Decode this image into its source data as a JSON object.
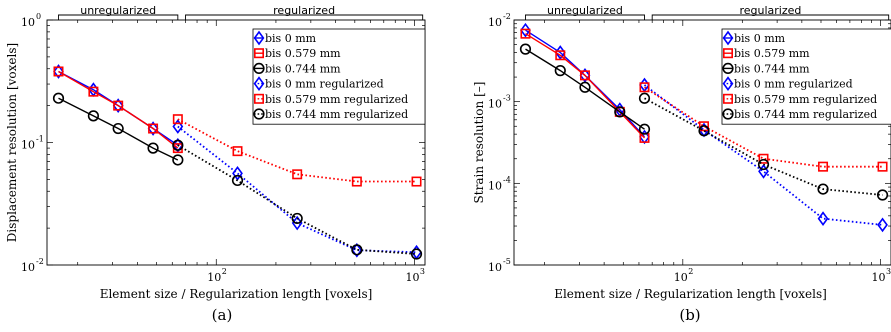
{
  "chart_data": [
    {
      "type": "line",
      "panel_label": "(a)",
      "xlabel": "Element size / Regularization length [voxels]",
      "ylabel": "Displacement resolution [voxels]",
      "xscale": "log",
      "yscale": "log",
      "xlim": [
        14,
        1130
      ],
      "ylim": [
        0.01,
        1
      ],
      "xticks": [
        {
          "v": 100,
          "base": "10",
          "exp": "2"
        },
        {
          "v": 1000,
          "base": "10",
          "exp": "3"
        }
      ],
      "yticks": [
        {
          "v": 0.01,
          "base": "10",
          "exp": "-2"
        },
        {
          "v": 0.1,
          "base": "10",
          "exp": "-1"
        },
        {
          "v": 1,
          "base": "10",
          "exp": "0"
        }
      ],
      "brackets": [
        {
          "label": "unregularized",
          "from": 16,
          "to": 64
        },
        {
          "label": "regularized",
          "from": 70,
          "to": 1100
        }
      ],
      "legend_position": "top-right",
      "series": [
        {
          "name": "bis 0 mm",
          "color": "#0000ff",
          "marker": "diamond",
          "style": "solid",
          "x": [
            16,
            24,
            32,
            48,
            64
          ],
          "y": [
            0.38,
            0.27,
            0.2,
            0.13,
            0.095
          ]
        },
        {
          "name": "bis 0.579 mm",
          "color": "#ff0000",
          "marker": "square",
          "style": "solid",
          "x": [
            16,
            24,
            32,
            48,
            64
          ],
          "y": [
            0.38,
            0.26,
            0.2,
            0.13,
            0.09
          ]
        },
        {
          "name": "bis 0.744 mm",
          "color": "#000000",
          "marker": "circle",
          "style": "solid",
          "x": [
            16,
            24,
            32,
            48,
            64
          ],
          "y": [
            0.23,
            0.165,
            0.13,
            0.09,
            0.072
          ]
        },
        {
          "name": "bis 0 mm regularized",
          "color": "#0000ff",
          "marker": "diamond",
          "style": "dotted",
          "x": [
            64,
            128,
            256,
            512,
            1024
          ],
          "y": [
            0.135,
            0.056,
            0.022,
            0.0132,
            0.0127
          ]
        },
        {
          "name": "bis 0.579 mm regularized",
          "color": "#ff0000",
          "marker": "square",
          "style": "dotted",
          "x": [
            64,
            128,
            256,
            512,
            1024
          ],
          "y": [
            0.155,
            0.085,
            0.055,
            0.048,
            0.048
          ]
        },
        {
          "name": "bis 0.744 mm regularized",
          "color": "#000000",
          "marker": "circle",
          "style": "dotted",
          "x": [
            64,
            128,
            256,
            512,
            1024
          ],
          "y": [
            0.095,
            0.049,
            0.024,
            0.0133,
            0.0123
          ]
        }
      ]
    },
    {
      "type": "line",
      "panel_label": "(b)",
      "xlabel": "Element size / Regularization length [voxels]",
      "ylabel": "Strain resolution [–]",
      "xscale": "log",
      "yscale": "log",
      "xlim": [
        14,
        1130
      ],
      "ylim": [
        1e-05,
        0.01
      ],
      "xticks": [
        {
          "v": 100,
          "base": "10",
          "exp": "2"
        },
        {
          "v": 1000,
          "base": "10",
          "exp": "3"
        }
      ],
      "yticks": [
        {
          "v": 1e-05,
          "base": "10",
          "exp": "-5"
        },
        {
          "v": 0.0001,
          "base": "10",
          "exp": "-4"
        },
        {
          "v": 0.001,
          "base": "10",
          "exp": "-3"
        },
        {
          "v": 0.01,
          "base": "10",
          "exp": "-2"
        }
      ],
      "brackets": [
        {
          "label": "unregularized",
          "from": 16,
          "to": 64
        },
        {
          "label": "regularized",
          "from": 70,
          "to": 1100
        }
      ],
      "legend_position": "top-right",
      "series": [
        {
          "name": "bis 0 mm",
          "color": "#0000ff",
          "marker": "diamond",
          "style": "solid",
          "x": [
            16,
            24,
            32,
            48,
            64
          ],
          "y": [
            0.0075,
            0.004,
            0.0021,
            0.0008,
            0.00037
          ]
        },
        {
          "name": "bis 0.579 mm",
          "color": "#ff0000",
          "marker": "square",
          "style": "solid",
          "x": [
            16,
            24,
            32,
            48,
            64
          ],
          "y": [
            0.0068,
            0.0037,
            0.0021,
            0.00075,
            0.00036
          ]
        },
        {
          "name": "bis 0.744 mm",
          "color": "#000000",
          "marker": "circle",
          "style": "solid",
          "x": [
            16,
            24,
            32,
            48,
            64
          ],
          "y": [
            0.0044,
            0.0024,
            0.0015,
            0.00075,
            0.00046
          ]
        },
        {
          "name": "bis 0 mm regularized",
          "color": "#0000ff",
          "marker": "diamond",
          "style": "dotted",
          "x": [
            64,
            128,
            256,
            512,
            1024
          ],
          "y": [
            0.0016,
            0.00045,
            0.00014,
            3.7e-05,
            3.1e-05
          ]
        },
        {
          "name": "bis 0.579 mm regularized",
          "color": "#ff0000",
          "marker": "square",
          "style": "dotted",
          "x": [
            64,
            128,
            256,
            512,
            1024
          ],
          "y": [
            0.0015,
            0.0005,
            0.0002,
            0.00016,
            0.00016
          ]
        },
        {
          "name": "bis 0.744 mm regularized",
          "color": "#000000",
          "marker": "circle",
          "style": "dotted",
          "x": [
            64,
            128,
            256,
            512,
            1024
          ],
          "y": [
            0.0011,
            0.00044,
            0.00017,
            8.5e-05,
            7.2e-05
          ]
        }
      ]
    }
  ]
}
